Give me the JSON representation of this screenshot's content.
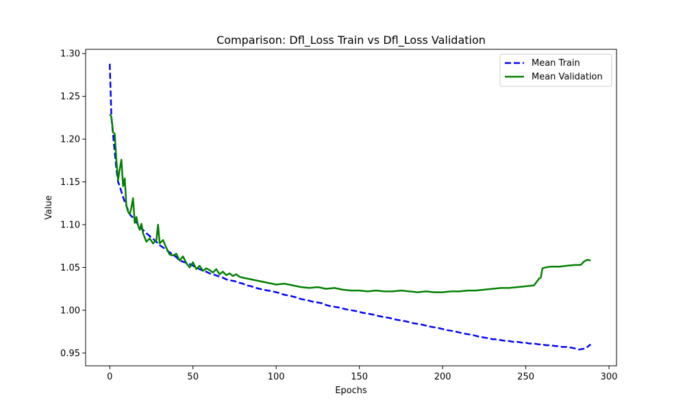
{
  "chart_data": {
    "type": "line",
    "title": "Comparison: Dfl_Loss Train vs Dfl_Loss Validation",
    "xlabel": "Epochs",
    "ylabel": "Value",
    "xlim": [
      -14.5,
      304.5
    ],
    "ylim": [
      0.935,
      1.305
    ],
    "xticks": [
      0,
      50,
      100,
      150,
      200,
      250,
      300
    ],
    "yticks": [
      0.95,
      1.0,
      1.05,
      1.1,
      1.15,
      1.2,
      1.25,
      1.3
    ],
    "ytick_labels": [
      "0.95",
      "1.00",
      "1.05",
      "1.10",
      "1.15",
      "1.20",
      "1.25",
      "1.30"
    ],
    "grid": false,
    "legend_position": "top-right",
    "series": [
      {
        "name": "Mean Train",
        "color": "#0000ff",
        "style": "dashed",
        "x": [
          0,
          1,
          2,
          3,
          4,
          5,
          6,
          8,
          10,
          12,
          15,
          18,
          20,
          22,
          25,
          28,
          30,
          33,
          35,
          38,
          40,
          42,
          45,
          48,
          50,
          53,
          55,
          58,
          60,
          62,
          65,
          68,
          70,
          72,
          75,
          78,
          80,
          82,
          85,
          88,
          90,
          92,
          95,
          98,
          100,
          102,
          105,
          108,
          110,
          112,
          115,
          118,
          120,
          122,
          125,
          128,
          130,
          132,
          135,
          138,
          140,
          142,
          145,
          148,
          150,
          152,
          155,
          158,
          160,
          162,
          165,
          168,
          170,
          172,
          175,
          178,
          180,
          182,
          185,
          188,
          190,
          192,
          195,
          198,
          200,
          202,
          205,
          208,
          210,
          212,
          215,
          218,
          220,
          222,
          225,
          228,
          230,
          232,
          235,
          238,
          240,
          242,
          245,
          248,
          250,
          252,
          255,
          258,
          260,
          262,
          265,
          268,
          270,
          272,
          275,
          278,
          280,
          282,
          285,
          287,
          289
        ],
        "values": [
          1.288,
          1.225,
          1.205,
          1.185,
          1.165,
          1.15,
          1.145,
          1.132,
          1.122,
          1.112,
          1.106,
          1.097,
          1.094,
          1.09,
          1.085,
          1.08,
          1.076,
          1.072,
          1.069,
          1.065,
          1.062,
          1.058,
          1.056,
          1.054,
          1.052,
          1.049,
          1.047,
          1.045,
          1.043,
          1.042,
          1.04,
          1.038,
          1.036,
          1.035,
          1.034,
          1.032,
          1.031,
          1.029,
          1.028,
          1.026,
          1.025,
          1.024,
          1.023,
          1.022,
          1.021,
          1.02,
          1.018,
          1.017,
          1.016,
          1.015,
          1.013,
          1.012,
          1.011,
          1.01,
          1.009,
          1.008,
          1.006,
          1.005,
          1.004,
          1.003,
          1.002,
          1.001,
          1.0,
          0.999,
          0.998,
          0.997,
          0.996,
          0.995,
          0.994,
          0.993,
          0.992,
          0.991,
          0.99,
          0.989,
          0.988,
          0.987,
          0.986,
          0.985,
          0.984,
          0.983,
          0.982,
          0.981,
          0.98,
          0.979,
          0.978,
          0.977,
          0.976,
          0.975,
          0.974,
          0.973,
          0.972,
          0.971,
          0.97,
          0.969,
          0.968,
          0.967,
          0.966,
          0.966,
          0.965,
          0.964,
          0.964,
          0.963,
          0.963,
          0.962,
          0.962,
          0.961,
          0.961,
          0.96,
          0.96,
          0.959,
          0.959,
          0.958,
          0.958,
          0.957,
          0.957,
          0.956,
          0.955,
          0.954,
          0.955,
          0.957,
          0.96
        ]
      },
      {
        "name": "Mean Validation",
        "color": "#008000",
        "style": "solid",
        "x": [
          0,
          1,
          2,
          3,
          4,
          5,
          6,
          7,
          8,
          9,
          10,
          11,
          12,
          13,
          14,
          15,
          16,
          17,
          18,
          19,
          20,
          22,
          24,
          26,
          28,
          29,
          30,
          32,
          34,
          36,
          38,
          40,
          42,
          44,
          46,
          48,
          50,
          52,
          54,
          56,
          58,
          60,
          62,
          64,
          66,
          68,
          70,
          72,
          74,
          76,
          78,
          80,
          85,
          90,
          95,
          100,
          105,
          110,
          115,
          120,
          125,
          130,
          135,
          140,
          145,
          150,
          155,
          160,
          165,
          170,
          175,
          180,
          185,
          190,
          195,
          200,
          205,
          210,
          215,
          220,
          225,
          230,
          235,
          240,
          245,
          250,
          255,
          258,
          259,
          260,
          262,
          265,
          270,
          275,
          280,
          283,
          285,
          287,
          289
        ],
        "values": [
          1.229,
          1.226,
          1.208,
          1.206,
          1.175,
          1.152,
          1.165,
          1.176,
          1.145,
          1.154,
          1.122,
          1.115,
          1.112,
          1.12,
          1.131,
          1.102,
          1.109,
          1.099,
          1.094,
          1.101,
          1.09,
          1.08,
          1.084,
          1.078,
          1.082,
          1.1,
          1.078,
          1.082,
          1.073,
          1.065,
          1.064,
          1.066,
          1.058,
          1.063,
          1.055,
          1.05,
          1.056,
          1.048,
          1.052,
          1.046,
          1.049,
          1.047,
          1.044,
          1.048,
          1.042,
          1.045,
          1.041,
          1.043,
          1.04,
          1.042,
          1.039,
          1.038,
          1.036,
          1.034,
          1.032,
          1.03,
          1.031,
          1.029,
          1.027,
          1.026,
          1.027,
          1.025,
          1.026,
          1.024,
          1.023,
          1.023,
          1.022,
          1.023,
          1.022,
          1.022,
          1.023,
          1.022,
          1.021,
          1.022,
          1.021,
          1.021,
          1.022,
          1.022,
          1.023,
          1.023,
          1.024,
          1.025,
          1.026,
          1.026,
          1.027,
          1.028,
          1.029,
          1.037,
          1.038,
          1.049,
          1.05,
          1.051,
          1.051,
          1.052,
          1.053,
          1.053,
          1.057,
          1.059,
          1.058
        ]
      }
    ]
  }
}
